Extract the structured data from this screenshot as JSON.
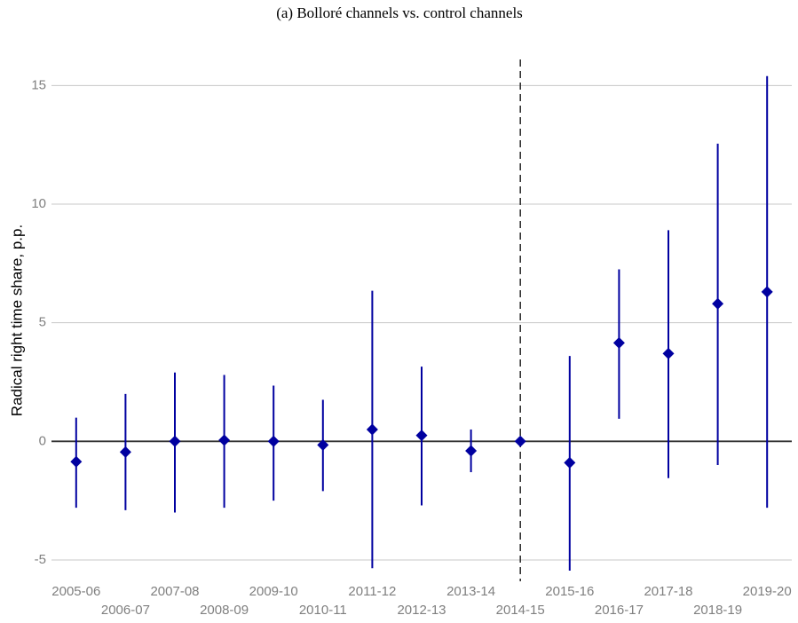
{
  "chart_data": {
    "type": "errorbar",
    "title": "(a) Bolloré channels vs. control channels",
    "y_label": "Radical right time share, p.p.",
    "categories": [
      "2005-06",
      "2006-07",
      "2007-08",
      "2008-09",
      "2009-10",
      "2010-11",
      "2011-12",
      "2012-13",
      "2013-14",
      "2014-15",
      "2015-16",
      "2016-17",
      "2017-18",
      "2018-19",
      "2019-20"
    ],
    "series": [
      {
        "color": "#0000a0",
        "values": [
          -0.86,
          -0.45,
          0.0,
          0.05,
          0.0,
          -0.15,
          0.5,
          0.25,
          -0.4,
          0.0,
          -0.9,
          4.15,
          3.7,
          5.8,
          6.3
        ],
        "lower": [
          -2.8,
          -2.9,
          -3.0,
          -2.8,
          -2.5,
          -2.1,
          -5.35,
          -2.7,
          -1.3,
          0.0,
          -5.45,
          0.95,
          -1.55,
          -1.0,
          -2.8
        ],
        "upper": [
          1.0,
          2.0,
          2.9,
          2.8,
          2.35,
          1.75,
          6.35,
          3.15,
          0.5,
          0.0,
          3.6,
          7.25,
          8.9,
          12.55,
          15.4
        ]
      }
    ],
    "ylim": [
      -5.9,
      16.1
    ],
    "yticks": [
      -5,
      0,
      5,
      10,
      15
    ],
    "grid": true,
    "hline": 0,
    "vline_x": 9
  }
}
